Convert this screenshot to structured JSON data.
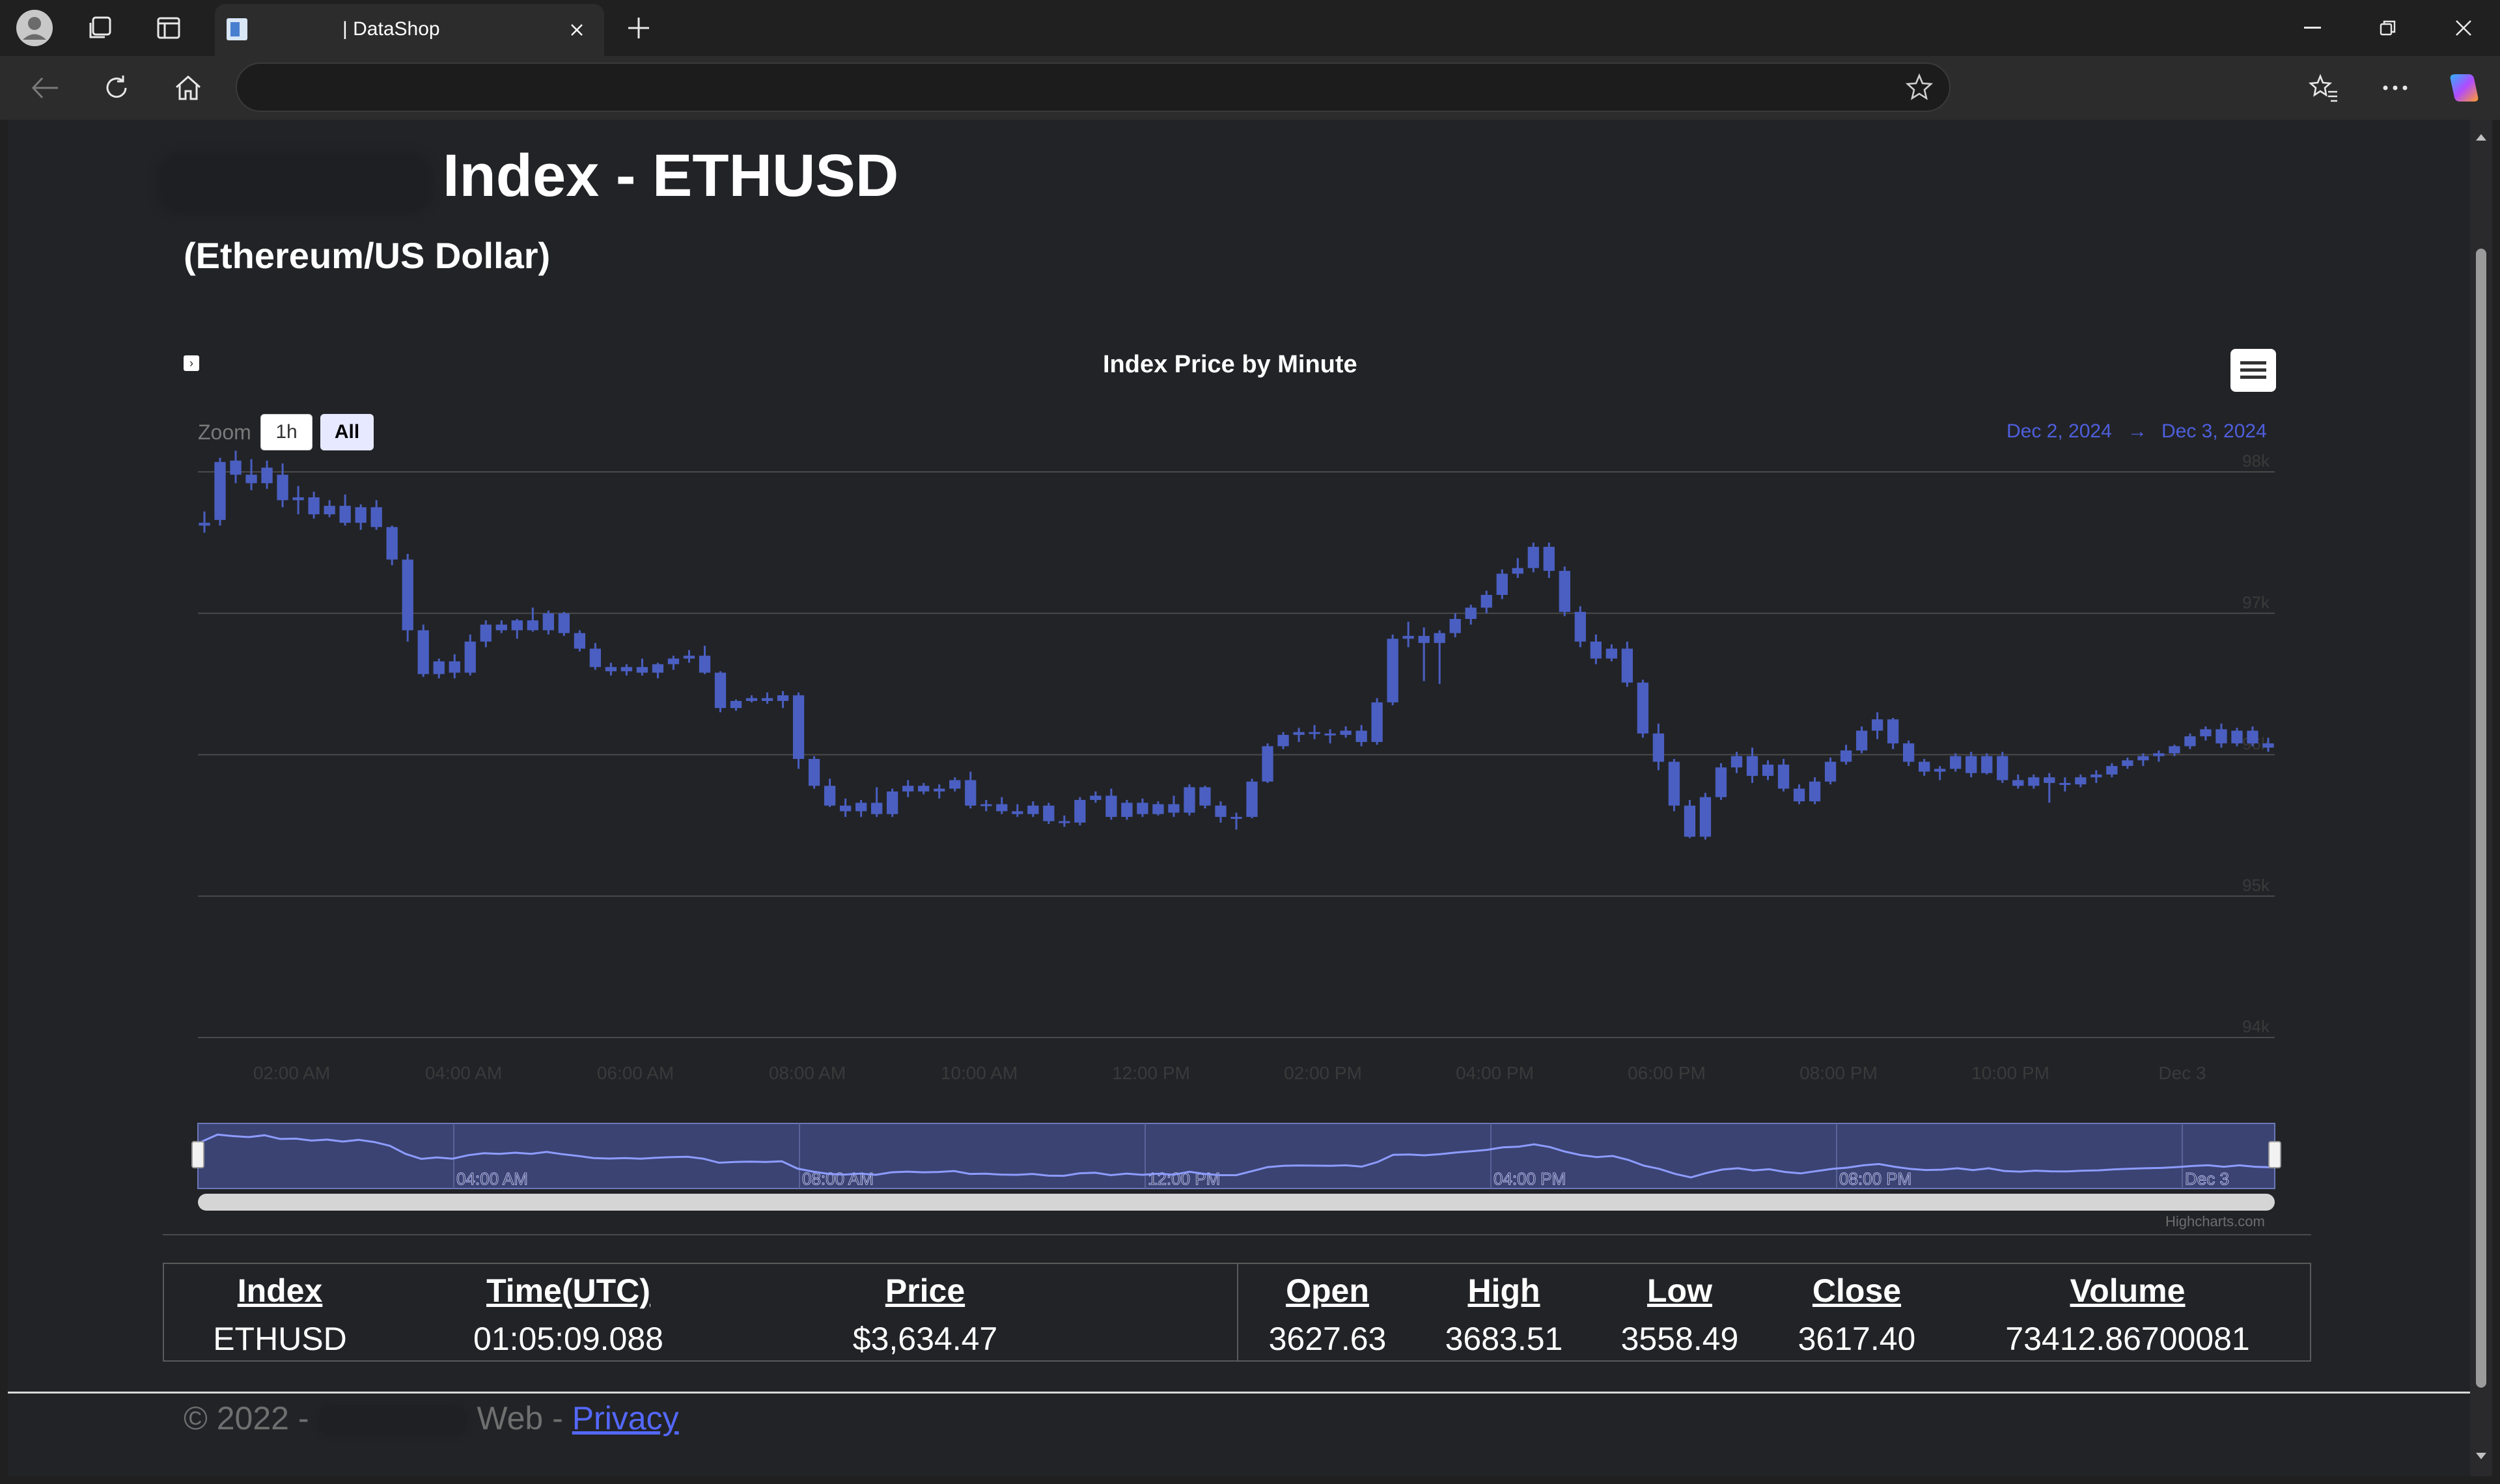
{
  "browser": {
    "tab_title": "| DataShop",
    "icons": {
      "profile": "profile-icon",
      "workspaces": "workspaces-icon",
      "tab_actions": "tab-actions-icon",
      "tab_favicon": "page-favicon-icon",
      "tab_close": "close-icon",
      "new_tab": "plus-icon",
      "minimize": "minimize-icon",
      "restore": "restore-icon",
      "window_close": "close-icon",
      "back": "back-arrow-icon",
      "refresh": "refresh-icon",
      "home": "home-icon",
      "favorite": "star-icon",
      "favorites": "favorites-icon",
      "more": "more-icon",
      "copilot": "copilot-icon"
    }
  },
  "page": {
    "title": "Index - ETHUSD",
    "subtitle": "(Ethereum/US Dollar)"
  },
  "chart": {
    "zoom_label": "Zoom",
    "zoom_buttons": [
      "1h",
      "All"
    ],
    "selected_zoom": "All",
    "range_from": "Dec 2, 2024",
    "range_arrow": "→",
    "range_to": "Dec 3, 2024",
    "credits": "Highcharts.com",
    "navigator_labels": [
      "04:00 AM",
      "08:00 AM",
      "12:00 PM",
      "04:00 PM",
      "08:00 PM",
      "Dec 3"
    ],
    "menu_icon": "hamburger-menu-icon"
  },
  "chart_data": {
    "type": "candlestick",
    "title": "Index Price by Minute",
    "x_ticks": [
      "02:00 AM",
      "04:00 AM",
      "06:00 AM",
      "08:00 AM",
      "10:00 AM",
      "12:00 PM",
      "02:00 PM",
      "04:00 PM",
      "06:00 PM",
      "08:00 PM",
      "10:00 PM",
      "Dec 3"
    ],
    "y_ticks": [
      "94k",
      "95k",
      "96k",
      "97k",
      "98k"
    ],
    "ylim": [
      94000,
      98000
    ],
    "grid": true,
    "legend": "none",
    "series_color": "#4a5fc1",
    "ohlc_approx": [
      [
        97620,
        97720,
        97570,
        97640
      ],
      [
        97660,
        98100,
        97620,
        98070
      ],
      [
        98080,
        98150,
        97920,
        97980
      ],
      [
        97980,
        98090,
        97870,
        97920
      ],
      [
        97920,
        98080,
        97880,
        98030
      ],
      [
        97980,
        98060,
        97750,
        97800
      ],
      [
        97800,
        97900,
        97700,
        97820
      ],
      [
        97820,
        97860,
        97670,
        97700
      ],
      [
        97700,
        97800,
        97680,
        97760
      ],
      [
        97760,
        97840,
        97620,
        97640
      ],
      [
        97640,
        97770,
        97590,
        97750
      ],
      [
        97750,
        97800,
        97590,
        97610
      ],
      [
        97610,
        97620,
        97340,
        97380
      ],
      [
        97380,
        97420,
        96800,
        96880
      ],
      [
        96880,
        96920,
        96550,
        96570
      ],
      [
        96570,
        96680,
        96540,
        96660
      ],
      [
        96660,
        96710,
        96540,
        96580
      ],
      [
        96580,
        96850,
        96560,
        96800
      ],
      [
        96800,
        96950,
        96760,
        96920
      ],
      [
        96920,
        96950,
        96860,
        96880
      ],
      [
        96880,
        96960,
        96820,
        96950
      ],
      [
        96950,
        97040,
        96870,
        96880
      ],
      [
        96880,
        97020,
        96850,
        97000
      ],
      [
        97000,
        97010,
        96840,
        96860
      ],
      [
        96860,
        96880,
        96730,
        96750
      ],
      [
        96750,
        96790,
        96600,
        96620
      ],
      [
        96620,
        96650,
        96560,
        96590
      ],
      [
        96590,
        96640,
        96560,
        96620
      ],
      [
        96620,
        96680,
        96560,
        96580
      ],
      [
        96580,
        96650,
        96540,
        96640
      ],
      [
        96640,
        96700,
        96600,
        96680
      ],
      [
        96680,
        96740,
        96650,
        96700
      ],
      [
        96700,
        96770,
        96570,
        96580
      ],
      [
        96580,
        96590,
        96300,
        96330
      ],
      [
        96330,
        96390,
        96310,
        96380
      ],
      [
        96380,
        96420,
        96370,
        96400
      ],
      [
        96400,
        96440,
        96360,
        96380
      ],
      [
        96380,
        96450,
        96330,
        96420
      ],
      [
        96420,
        96440,
        95900,
        95970
      ],
      [
        95970,
        95990,
        95760,
        95780
      ],
      [
        95780,
        95830,
        95630,
        95640
      ],
      [
        95640,
        95690,
        95560,
        95600
      ],
      [
        95600,
        95680,
        95560,
        95660
      ],
      [
        95660,
        95770,
        95560,
        95580
      ],
      [
        95580,
        95760,
        95560,
        95740
      ],
      [
        95740,
        95820,
        95700,
        95780
      ],
      [
        95780,
        95800,
        95720,
        95740
      ],
      [
        95740,
        95790,
        95690,
        95760
      ],
      [
        95760,
        95840,
        95740,
        95820
      ],
      [
        95820,
        95880,
        95620,
        95640
      ],
      [
        95640,
        95680,
        95600,
        95650
      ],
      [
        95650,
        95700,
        95580,
        95600
      ],
      [
        95600,
        95650,
        95560,
        95580
      ],
      [
        95580,
        95670,
        95560,
        95640
      ],
      [
        95640,
        95660,
        95510,
        95530
      ],
      [
        95530,
        95570,
        95490,
        95520
      ],
      [
        95520,
        95700,
        95500,
        95680
      ],
      [
        95680,
        95740,
        95660,
        95710
      ],
      [
        95710,
        95760,
        95540,
        95560
      ],
      [
        95560,
        95680,
        95540,
        95660
      ],
      [
        95660,
        95690,
        95560,
        95580
      ],
      [
        95580,
        95670,
        95570,
        95650
      ],
      [
        95650,
        95710,
        95560,
        95590
      ],
      [
        95590,
        95790,
        95570,
        95770
      ],
      [
        95770,
        95780,
        95620,
        95640
      ],
      [
        95640,
        95670,
        95520,
        95560
      ],
      [
        95560,
        95590,
        95470,
        95560
      ],
      [
        95560,
        95830,
        95550,
        95810
      ],
      [
        95810,
        96080,
        95800,
        96060
      ],
      [
        96060,
        96160,
        96040,
        96140
      ],
      [
        96140,
        96190,
        96090,
        96160
      ],
      [
        96160,
        96210,
        96110,
        96150
      ],
      [
        96150,
        96180,
        96080,
        96140
      ],
      [
        96140,
        96200,
        96120,
        96170
      ],
      [
        96170,
        96210,
        96060,
        96090
      ],
      [
        96090,
        96400,
        96070,
        96370
      ],
      [
        96370,
        96850,
        96350,
        96820
      ],
      [
        96820,
        96940,
        96760,
        96840
      ],
      [
        96840,
        96900,
        96520,
        96790
      ],
      [
        96790,
        96880,
        96500,
        96860
      ],
      [
        96860,
        97000,
        96830,
        96960
      ],
      [
        96960,
        97060,
        96920,
        97040
      ],
      [
        97040,
        97160,
        97000,
        97130
      ],
      [
        97130,
        97310,
        97100,
        97280
      ],
      [
        97280,
        97390,
        97250,
        97320
      ],
      [
        97320,
        97500,
        97290,
        97470
      ],
      [
        97470,
        97500,
        97250,
        97300
      ],
      [
        97300,
        97330,
        96980,
        97010
      ],
      [
        97010,
        97050,
        96760,
        96800
      ],
      [
        96800,
        96850,
        96640,
        96680
      ],
      [
        96680,
        96780,
        96660,
        96750
      ],
      [
        96750,
        96800,
        96480,
        96510
      ],
      [
        96510,
        96530,
        96120,
        96150
      ],
      [
        96150,
        96220,
        95890,
        95950
      ],
      [
        95950,
        95970,
        95600,
        95640
      ],
      [
        95640,
        95680,
        95410,
        95420
      ],
      [
        95420,
        95730,
        95400,
        95700
      ],
      [
        95700,
        95940,
        95680,
        95910
      ],
      [
        95910,
        96020,
        95870,
        95990
      ],
      [
        95990,
        96050,
        95800,
        95850
      ],
      [
        95850,
        95960,
        95820,
        95930
      ],
      [
        95930,
        95970,
        95740,
        95760
      ],
      [
        95760,
        95790,
        95650,
        95670
      ],
      [
        95670,
        95840,
        95650,
        95810
      ],
      [
        95810,
        95980,
        95790,
        95950
      ],
      [
        95950,
        96070,
        95930,
        96030
      ],
      [
        96030,
        96200,
        96010,
        96170
      ],
      [
        96170,
        96300,
        96110,
        96250
      ],
      [
        96250,
        96260,
        96040,
        96080
      ],
      [
        96080,
        96100,
        95920,
        95950
      ],
      [
        95950,
        95970,
        95850,
        95880
      ],
      [
        95880,
        95920,
        95820,
        95900
      ],
      [
        95900,
        96010,
        95880,
        95990
      ],
      [
        95990,
        96020,
        95840,
        95870
      ],
      [
        95870,
        96010,
        95860,
        95990
      ],
      [
        95990,
        96020,
        95800,
        95820
      ],
      [
        95820,
        95860,
        95760,
        95780
      ],
      [
        95780,
        95860,
        95760,
        95840
      ],
      [
        95840,
        95870,
        95660,
        95800
      ],
      [
        95800,
        95840,
        95740,
        95790
      ],
      [
        95790,
        95860,
        95770,
        95840
      ],
      [
        95840,
        95890,
        95800,
        95860
      ],
      [
        95860,
        95940,
        95840,
        95920
      ],
      [
        95920,
        95980,
        95900,
        95960
      ],
      [
        95960,
        96010,
        95920,
        95990
      ],
      [
        95990,
        96030,
        95950,
        96010
      ],
      [
        96010,
        96070,
        95990,
        96060
      ],
      [
        96060,
        96150,
        96040,
        96130
      ],
      [
        96130,
        96200,
        96100,
        96180
      ],
      [
        96180,
        96220,
        96050,
        96080
      ],
      [
        96080,
        96190,
        96060,
        96170
      ],
      [
        96170,
        96200,
        96060,
        96080
      ],
      [
        96080,
        96120,
        96020,
        96050
      ]
    ]
  },
  "quote": {
    "headers": [
      "Index",
      "Time(UTC)",
      "Price",
      "Open",
      "High",
      "Low",
      "Close",
      "Volume"
    ],
    "values": [
      "ETHUSD",
      "01:05:09.088",
      "$3,634.47",
      "3627.63",
      "3683.51",
      "3558.49",
      "3617.40",
      "73412.86700081"
    ]
  },
  "footer": {
    "copyright": "© 2022 -",
    "web": "Web -",
    "privacy_link": "Privacy"
  }
}
